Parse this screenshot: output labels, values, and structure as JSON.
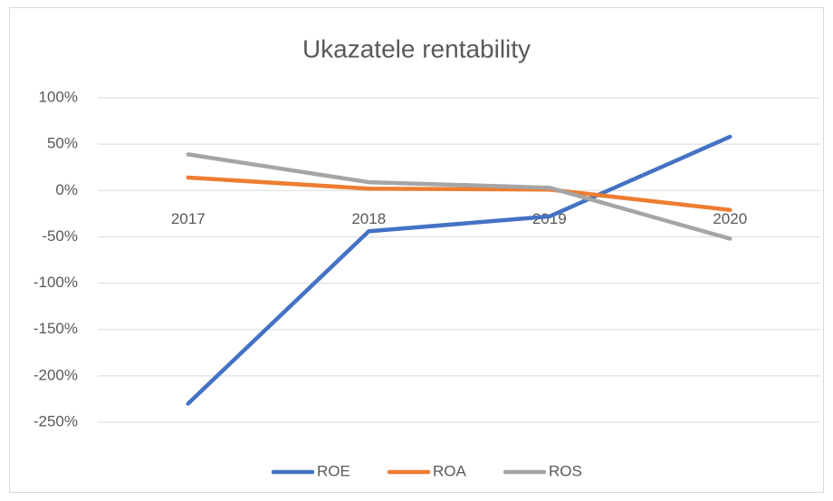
{
  "chart_data": {
    "type": "line",
    "title": "Ukazatele rentability",
    "categories": [
      "2017",
      "2018",
      "2019",
      "2020"
    ],
    "series": [
      {
        "name": "ROE",
        "color": "#4472c4",
        "values": [
          -230,
          -44,
          -28,
          58
        ]
      },
      {
        "name": "ROA",
        "color": "#ed7d31",
        "values": [
          14,
          2,
          1,
          -21
        ]
      },
      {
        "name": "ROS",
        "color": "#a5a5a5",
        "values": [
          39,
          9,
          3,
          -52
        ]
      }
    ],
    "ylim": [
      -250,
      100
    ],
    "yticks": [
      {
        "value": -250,
        "label": "-250%"
      },
      {
        "value": -200,
        "label": "-200%"
      },
      {
        "value": -150,
        "label": "-150%"
      },
      {
        "value": -100,
        "label": "-100%"
      },
      {
        "value": -50,
        "label": "-50%"
      },
      {
        "value": 0,
        "label": "0%"
      },
      {
        "value": 50,
        "label": "50%"
      },
      {
        "value": 100,
        "label": "100%"
      }
    ],
    "grid": true,
    "legend": "bottom"
  }
}
